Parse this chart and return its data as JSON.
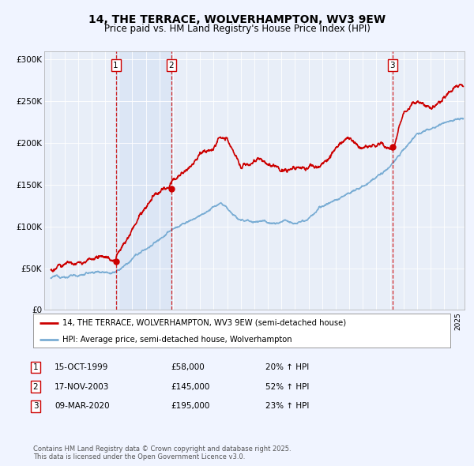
{
  "title": "14, THE TERRACE, WOLVERHAMPTON, WV3 9EW",
  "subtitle": "Price paid vs. HM Land Registry's House Price Index (HPI)",
  "background_color": "#f0f4ff",
  "plot_bg_color": "#e8eef8",
  "sales": [
    {
      "label": "1",
      "date": 1999.79,
      "price": 58000,
      "display": "15-OCT-1999",
      "amount": "£58,000",
      "change": "20% ↑ HPI"
    },
    {
      "label": "2",
      "date": 2003.88,
      "price": 145000,
      "display": "17-NOV-2003",
      "amount": "£145,000",
      "change": "52% ↑ HPI"
    },
    {
      "label": "3",
      "date": 2020.19,
      "price": 195000,
      "display": "09-MAR-2020",
      "amount": "£195,000",
      "change": "23% ↑ HPI"
    }
  ],
  "legend_property": "14, THE TERRACE, WOLVERHAMPTON, WV3 9EW (semi-detached house)",
  "legend_hpi": "HPI: Average price, semi-detached house, Wolverhampton",
  "footer": "Contains HM Land Registry data © Crown copyright and database right 2025.\nThis data is licensed under the Open Government Licence v3.0.",
  "ylim": [
    0,
    310000
  ],
  "xlim": [
    1994.5,
    2025.5
  ],
  "yticks": [
    0,
    50000,
    100000,
    150000,
    200000,
    250000,
    300000
  ],
  "ytick_labels": [
    "£0",
    "£50K",
    "£100K",
    "£150K",
    "£200K",
    "£250K",
    "£300K"
  ],
  "xticks": [
    1995,
    1996,
    1997,
    1998,
    1999,
    2000,
    2001,
    2002,
    2003,
    2004,
    2005,
    2006,
    2007,
    2008,
    2009,
    2010,
    2011,
    2012,
    2013,
    2014,
    2015,
    2016,
    2017,
    2018,
    2019,
    2020,
    2021,
    2022,
    2023,
    2024,
    2025
  ],
  "property_color": "#cc0000",
  "hpi_color": "#7aadd4",
  "marker_color": "#cc0000",
  "vline_color": "#cc0000",
  "shade_color": "#d0dff0"
}
